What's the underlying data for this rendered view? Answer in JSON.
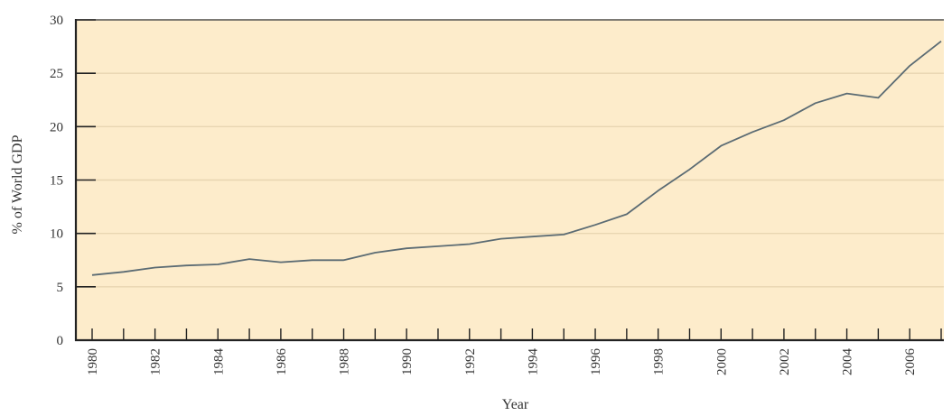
{
  "chart_data": {
    "type": "line",
    "title": "",
    "xlabel": "Year",
    "ylabel": "% of World GDP",
    "x": [
      1980,
      1981,
      1982,
      1983,
      1984,
      1985,
      1986,
      1987,
      1988,
      1989,
      1990,
      1991,
      1992,
      1993,
      1994,
      1995,
      1996,
      1997,
      1998,
      1999,
      2000,
      2001,
      2002,
      2003,
      2004,
      2005,
      2006,
      2007
    ],
    "series": [
      {
        "values": [
          6.1,
          6.4,
          6.8,
          7.0,
          7.1,
          7.6,
          7.3,
          7.5,
          7.5,
          8.2,
          8.6,
          8.8,
          9.0,
          9.5,
          9.7,
          9.9,
          10.8,
          11.8,
          14.0,
          16.0,
          18.2,
          19.5,
          20.6,
          22.2,
          23.1,
          22.7,
          25.7,
          28.0
        ],
        "color": "#5b6b73"
      }
    ],
    "xlim": [
      1980,
      2007
    ],
    "ylim": [
      0,
      30
    ],
    "yticks": [
      0,
      5,
      10,
      15,
      20,
      25,
      30
    ],
    "xtick_labels": [
      "1980",
      "1982",
      "1984",
      "1986",
      "1988",
      "1990",
      "1992",
      "1994",
      "1996",
      "1998",
      "2000",
      "2002",
      "2004",
      "2006"
    ],
    "grid": true,
    "legend": "none",
    "colors": {
      "plot_background": "#fdeccb",
      "gridline": "#e8d6b2",
      "axis": "#222222",
      "line": "#5b6b73"
    }
  }
}
